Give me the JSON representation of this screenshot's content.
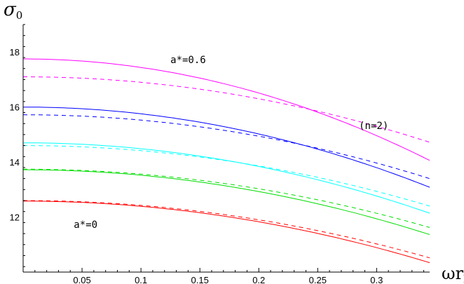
{
  "chart_data": {
    "type": "line",
    "xlabel": "ωr",
    "xlabel_sub": "h",
    "ylabel": "σ",
    "ylabel_sub": "0",
    "xlim": [
      0.0,
      0.345
    ],
    "ylim": [
      10.0,
      19.0
    ],
    "x_ticks": [
      0.05,
      0.1,
      0.15,
      0.2,
      0.25,
      0.3
    ],
    "x_tick_labels": [
      "0.05",
      "0.1",
      "0.15",
      "0.2",
      "0.25",
      "0.3"
    ],
    "y_ticks": [
      12,
      14,
      16,
      18
    ],
    "y_tick_labels": [
      "12",
      "14",
      "16",
      "18"
    ],
    "grid": false,
    "annotations": [
      {
        "text": "a*=0.6",
        "x": 0.125,
        "y": 17.6
      },
      {
        "text": "(n=2)",
        "x": 0.285,
        "y": 15.2
      },
      {
        "text": "a*=0",
        "x": 0.043,
        "y": 11.6
      }
    ],
    "series": [
      {
        "color": "#ff00ff",
        "dash": false,
        "y0": 17.75,
        "k": 31.0
      },
      {
        "color": "#ff00ff",
        "dash": true,
        "y0": 17.1,
        "k": 20.0
      },
      {
        "color": "#0000ff",
        "dash": false,
        "y0": 16.0,
        "k": 24.5
      },
      {
        "color": "#0000ff",
        "dash": true,
        "y0": 15.72,
        "k": 19.5
      },
      {
        "color": "#00ffff",
        "dash": false,
        "y0": 14.7,
        "k": 21.5
      },
      {
        "color": "#00ffff",
        "dash": true,
        "y0": 14.6,
        "k": 18.5
      },
      {
        "color": "#00dd00",
        "dash": false,
        "y0": 13.72,
        "k": 19.8
      },
      {
        "color": "#00dd00",
        "dash": true,
        "y0": 13.74,
        "k": 17.8
      },
      {
        "color": "#ff0000",
        "dash": false,
        "y0": 12.58,
        "k": 18.8
      },
      {
        "color": "#ff0000",
        "dash": true,
        "y0": 12.6,
        "k": 17.5
      }
    ]
  }
}
